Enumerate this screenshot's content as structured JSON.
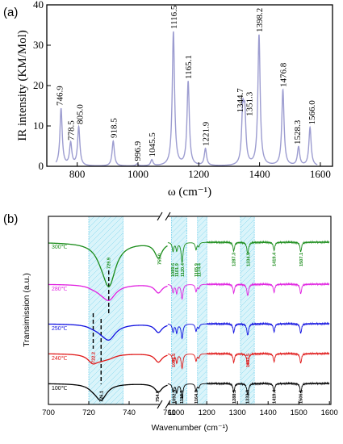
{
  "chart_data": [
    {
      "type": "line",
      "panel_label": "(a)",
      "xlabel": "ω (cm⁻¹)",
      "ylabel": "IR intensity (KM/Mol)",
      "xlim": [
        700,
        1640
      ],
      "ylim": [
        0,
        40
      ],
      "xticks": [
        "800",
        "1000",
        "1200",
        "1400",
        "1600"
      ],
      "yticks": [
        "0",
        "10",
        "20",
        "30",
        "40"
      ],
      "line_color": "#9c9cd0",
      "peaks": [
        {
          "x": 746.9,
          "y": 14.2,
          "label": "746.9"
        },
        {
          "x": 778.5,
          "y": 5.6,
          "label": "778.5"
        },
        {
          "x": 805.0,
          "y": 9.6,
          "label": "805.0"
        },
        {
          "x": 918.5,
          "y": 6.2,
          "label": "918.5"
        },
        {
          "x": 996.9,
          "y": 0.5,
          "label": "996.9"
        },
        {
          "x": 1045.5,
          "y": 1.5,
          "label": "1045.5"
        },
        {
          "x": 1116.5,
          "y": 33.2,
          "label": "1116.5"
        },
        {
          "x": 1165.1,
          "y": 20.8,
          "label": "1165.1"
        },
        {
          "x": 1221.9,
          "y": 4.2,
          "label": "1221.9"
        },
        {
          "x": 1344.7,
          "y": 12.5,
          "label": "1344.7"
        },
        {
          "x": 1351.3,
          "y": 11.6,
          "label": "1351.3"
        },
        {
          "x": 1398.2,
          "y": 32.4,
          "label": "1398.2"
        },
        {
          "x": 1476.8,
          "y": 18.8,
          "label": "1476.8"
        },
        {
          "x": 1528.3,
          "y": 4.6,
          "label": "1528.3"
        },
        {
          "x": 1566.0,
          "y": 9.5,
          "label": "1566.0"
        }
      ]
    },
    {
      "type": "line",
      "panel_label": "(b)",
      "xlabel": "Wavenumber (cm⁻¹)",
      "ylabel": "Transimission (a.u.)",
      "xticks": [
        "700",
        "720",
        "740",
        "760",
        "1100",
        "1200",
        "1300",
        "1400",
        "1500",
        "1600"
      ],
      "axis_break": true,
      "highlight_color": "#aee6f5",
      "highlight_ranges": [
        [
          720,
          737
        ],
        [
          1085,
          1135
        ],
        [
          1170,
          1200
        ],
        [
          1310,
          1355
        ]
      ],
      "series": [
        {
          "name": "300℃",
          "color": "#1a8c1a",
          "offset": 4,
          "peaks": [
            {
              "x": 729.9,
              "label": "729.9"
            },
            {
              "x": 755.0,
              "label": "755.0"
            },
            {
              "x": 1089.6,
              "label": "1089.6"
            },
            {
              "x": 1101.9,
              "label": "1101.9"
            },
            {
              "x": 1120.4,
              "label": "1120.4"
            },
            {
              "x": 1165.9,
              "label": "1165.9"
            },
            {
              "x": 1174.4,
              "label": "1174.4"
            },
            {
              "x": 1287.3,
              "label": "1287.3"
            },
            {
              "x": 1334.5,
              "label": "1334.5"
            },
            {
              "x": 1419.4,
              "label": "1419.4"
            },
            {
              "x": 1507.1,
              "label": "1507.1"
            }
          ]
        },
        {
          "name": "280℃",
          "color": "#e020e0",
          "offset": 3,
          "peaks": []
        },
        {
          "name": "250℃",
          "color": "#1010e0",
          "offset": 2,
          "peaks": []
        },
        {
          "name": "240℃",
          "color": "#e01818",
          "offset": 1,
          "peaks": [
            {
              "x": 722.2,
              "label": "722.2"
            },
            {
              "x": 1091.5,
              "label": "1091.5"
            },
            {
              "x": 1333.5,
              "label": "1333.5"
            }
          ]
        },
        {
          "name": "100℃",
          "color": "#000000",
          "offset": 0,
          "peaks": [
            {
              "x": 726.1,
              "label": "726.1"
            },
            {
              "x": 754.0,
              "label": "754.0"
            },
            {
              "x": 1092.5,
              "label": "1092.5"
            },
            {
              "x": 1118.5,
              "label": "1118.5"
            },
            {
              "x": 1164.8,
              "label": "1164.8"
            },
            {
              "x": 1288.3,
              "label": "1288.3"
            },
            {
              "x": 1332.6,
              "label": "1332.6"
            },
            {
              "x": 1419.4,
              "label": "1419.4"
            },
            {
              "x": 1506.1,
              "label": "1506.1"
            }
          ]
        }
      ]
    }
  ]
}
